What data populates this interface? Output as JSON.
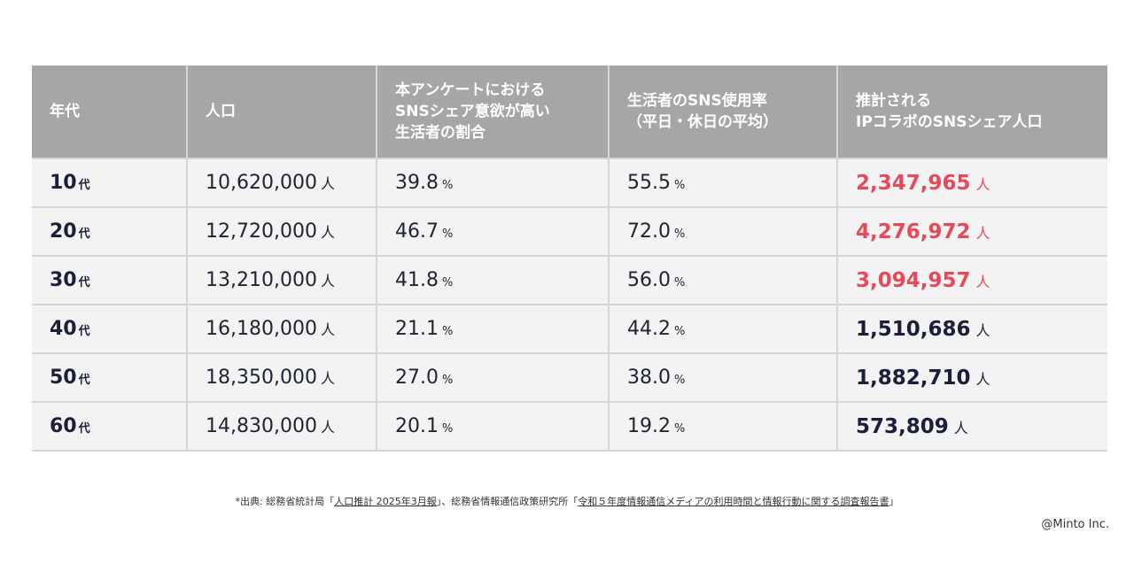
{
  "table": {
    "headers": [
      "年代",
      "人口",
      "本アンケートにおける\nSNSシェア意欲が高い\n生活者の割合",
      "生活者のSNS使用率\n（平日・休日の平均）",
      "推計される\nIPコラボのSNSシェア人口"
    ],
    "rows": [
      {
        "age": "10",
        "age_unit": "代",
        "population": "10,620,000",
        "population_unit": "人",
        "share_rate": "39.8",
        "share_unit": "%",
        "sns_rate": "55.5",
        "sns_unit": "%",
        "estimate": "2,347,965",
        "estimate_unit": "人",
        "highlight": true
      },
      {
        "age": "20",
        "age_unit": "代",
        "population": "12,720,000",
        "population_unit": "人",
        "share_rate": "46.7",
        "share_unit": "%",
        "sns_rate": "72.0",
        "sns_unit": "%",
        "estimate": "4,276,972",
        "estimate_unit": "人",
        "highlight": true
      },
      {
        "age": "30",
        "age_unit": "代",
        "population": "13,210,000",
        "population_unit": "人",
        "share_rate": "41.8",
        "share_unit": "%",
        "sns_rate": "56.0",
        "sns_unit": "%",
        "estimate": "3,094,957",
        "estimate_unit": "人",
        "highlight": true
      },
      {
        "age": "40",
        "age_unit": "代",
        "population": "16,180,000",
        "population_unit": "人",
        "share_rate": "21.1",
        "share_unit": "%",
        "sns_rate": "44.2",
        "sns_unit": "%",
        "estimate": "1,510,686",
        "estimate_unit": "人",
        "highlight": false
      },
      {
        "age": "50",
        "age_unit": "代",
        "population": "18,350,000",
        "population_unit": "人",
        "share_rate": "27.0",
        "share_unit": "%",
        "sns_rate": "38.0",
        "sns_unit": "%",
        "estimate": "1,882,710",
        "estimate_unit": "人",
        "highlight": false
      },
      {
        "age": "60",
        "age_unit": "代",
        "population": "14,830,000",
        "population_unit": "人",
        "share_rate": "20.1",
        "share_unit": "%",
        "sns_rate": "19.2",
        "sns_unit": "%",
        "estimate": "573,809",
        "estimate_unit": "人",
        "highlight": false
      }
    ]
  },
  "source": {
    "prefix": "*出典: 総務省統計局「",
    "link1": "人口推計 2025年3月報",
    "middle": "」、総務省情報通信政策研究所「",
    "link2": "令和５年度情報通信メディアの利用時間と情報行動に関する調査報告書",
    "suffix": "」"
  },
  "credit": "@Minto Inc.",
  "colors": {
    "header_bg": "#a6a6a6",
    "cell_bg": "#f3f3f3",
    "highlight": "#e8495a",
    "text_dark": "#1b1f3b"
  }
}
